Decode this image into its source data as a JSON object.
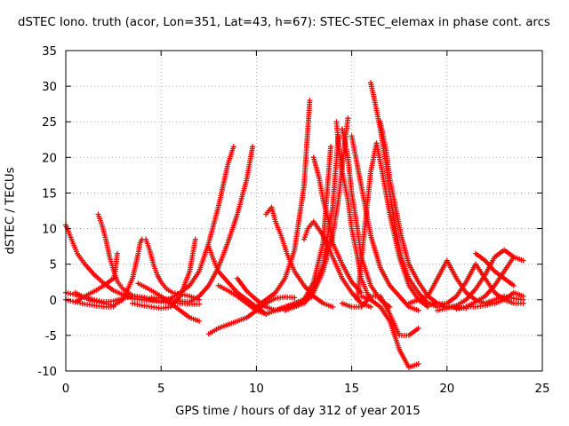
{
  "chart_data": {
    "type": "scatter",
    "title": "dSTEC Iono. truth (acor, Lon=351, Lat=43, h=67): STEC-STEC_elemax in phase cont. arcs",
    "xlabel": "GPS time / hours of day 312 of year 2015",
    "ylabel": "dSTEC  / TECUs",
    "xlim": [
      0,
      25
    ],
    "ylim": [
      -10,
      35
    ],
    "x_ticks": [
      0,
      5,
      10,
      15,
      20,
      25
    ],
    "y_ticks": [
      -10,
      -5,
      0,
      5,
      10,
      15,
      20,
      25,
      30,
      35
    ],
    "grid": true,
    "marker": "+",
    "color": "#ff0000",
    "series": [
      {
        "x": [
          0.0,
          0.3,
          0.6,
          1.0,
          1.5,
          2.0,
          2.5,
          3.0,
          3.5,
          4.0
        ],
        "y": [
          10.5,
          8.5,
          6.5,
          5.0,
          3.5,
          2.3,
          1.3,
          0.7,
          0.2,
          0.0
        ]
      },
      {
        "x": [
          0.0,
          0.5,
          1.0,
          1.5,
          2.0,
          2.5,
          3.0,
          3.5,
          4.0,
          4.5,
          5.0,
          5.5,
          6.0
        ],
        "y": [
          1.0,
          0.7,
          0.3,
          0.0,
          -0.3,
          -0.2,
          0.2,
          0.5,
          0.4,
          0.1,
          -0.2,
          -0.3,
          -0.2
        ]
      },
      {
        "x": [
          0.0,
          0.5,
          1.0,
          1.5,
          2.0,
          2.5
        ],
        "y": [
          0.0,
          -0.3,
          -0.6,
          -0.8,
          -1.0,
          -1.0
        ]
      },
      {
        "x": [
          1.7,
          1.9,
          2.1,
          2.3,
          2.5,
          2.7,
          3.0,
          3.5,
          4.0,
          4.5,
          5.0,
          5.5,
          6.0,
          6.5,
          7.0
        ],
        "y": [
          12.0,
          10.5,
          8.5,
          6.0,
          4.2,
          2.6,
          1.5,
          0.6,
          0.3,
          0.0,
          -0.3,
          -0.4,
          -0.5,
          -0.6,
          -0.6
        ]
      },
      {
        "x": [
          0.5,
          1.0,
          1.5,
          2.0,
          2.5,
          2.6,
          2.7
        ],
        "y": [
          -0.3,
          0.5,
          1.2,
          2.0,
          3.0,
          4.0,
          6.5
        ]
      },
      {
        "x": [
          0.5,
          1.0,
          1.5,
          2.0,
          2.5,
          3.0,
          3.5,
          3.8,
          3.9,
          4.0
        ],
        "y": [
          1.0,
          0.3,
          -0.2,
          -0.5,
          -0.8,
          0.0,
          3.0,
          6.5,
          8.0,
          8.5
        ]
      },
      {
        "x": [
          4.2,
          4.4,
          4.6,
          4.8,
          5.0,
          5.3,
          5.6,
          6.0,
          6.5,
          7.0
        ],
        "y": [
          8.5,
          7.0,
          5.0,
          3.5,
          2.5,
          1.5,
          1.0,
          0.8,
          0.5,
          0.0
        ]
      },
      {
        "x": [
          3.5,
          4.0,
          4.5,
          5.0,
          5.5,
          6.0,
          6.5,
          6.8
        ],
        "y": [
          -0.5,
          -0.8,
          -1.0,
          -1.2,
          -1.0,
          0.5,
          4.0,
          8.5
        ]
      },
      {
        "x": [
          3.8,
          4.5,
          5.0,
          5.5,
          6.0,
          6.5,
          7.0
        ],
        "y": [
          2.3,
          1.3,
          0.5,
          -0.5,
          -1.5,
          -2.5,
          -3.0
        ]
      },
      {
        "x": [
          4.0,
          5.0,
          5.5,
          6.0,
          6.5,
          7.0,
          7.5,
          8.0,
          8.5,
          8.8
        ],
        "y": [
          0.0,
          -0.2,
          0.2,
          1.0,
          2.0,
          4.0,
          8.0,
          13.0,
          19.0,
          21.5
        ]
      },
      {
        "x": [
          4.5,
          5.0,
          5.5,
          6.0,
          6.5,
          7.0,
          7.5,
          8.0,
          8.5,
          9.0,
          9.5,
          9.8
        ],
        "y": [
          0.3,
          0.2,
          0.0,
          -0.2,
          -0.3,
          0.5,
          2.0,
          4.5,
          8.0,
          12.0,
          17.0,
          21.5
        ]
      },
      {
        "x": [
          7.5,
          7.7,
          8.0,
          8.5,
          9.0,
          9.5,
          10.0,
          10.5
        ],
        "y": [
          7.5,
          6.0,
          4.0,
          2.5,
          1.0,
          0.0,
          -1.0,
          -2.0
        ]
      },
      {
        "x": [
          7.5,
          8.0,
          8.5,
          9.0,
          9.5,
          10.0,
          10.5,
          11.0,
          11.5,
          12.0
        ],
        "y": [
          -4.8,
          -4.0,
          -3.5,
          -3.0,
          -2.5,
          -1.5,
          -0.5,
          0.2,
          0.4,
          0.3
        ]
      },
      {
        "x": [
          8.0,
          8.5,
          9.0,
          9.5,
          10.0,
          10.5,
          11.0,
          11.5,
          12.0
        ],
        "y": [
          2.0,
          1.3,
          0.5,
          -0.5,
          -1.5,
          -2.0,
          -1.5,
          -1.0,
          -0.8
        ]
      },
      {
        "x": [
          9.0,
          9.5,
          10.0,
          10.5,
          11.0,
          11.5,
          12.0,
          12.5,
          13.0
        ],
        "y": [
          3.0,
          1.2,
          0.0,
          -1.0,
          -1.5,
          -1.2,
          -0.5,
          0.0,
          0.5
        ]
      },
      {
        "x": [
          10.0,
          10.5,
          11.0,
          11.5,
          12.0,
          12.5,
          12.8
        ],
        "y": [
          -1.0,
          0.0,
          1.0,
          3.0,
          7.0,
          16.0,
          28.0
        ]
      },
      {
        "x": [
          10.5,
          10.8,
          11.0,
          11.3,
          11.6,
          12.0,
          12.5,
          13.0,
          13.5,
          14.0
        ],
        "y": [
          12.0,
          13.0,
          11.0,
          9.0,
          6.5,
          4.0,
          2.0,
          0.5,
          -0.5,
          -1.0
        ]
      },
      {
        "x": [
          11.0,
          11.5,
          12.0,
          12.5,
          13.0,
          13.5,
          13.9
        ],
        "y": [
          -1.5,
          -1.0,
          -0.5,
          0.0,
          2.5,
          8.0,
          21.5
        ]
      },
      {
        "x": [
          11.5,
          12.0,
          12.5,
          13.0,
          13.5,
          14.0,
          14.3
        ],
        "y": [
          -1.5,
          -1.0,
          0.0,
          1.5,
          5.0,
          13.0,
          23.0
        ]
      },
      {
        "x": [
          12.0,
          12.5,
          13.0,
          13.5,
          14.0,
          14.3,
          14.6,
          14.8
        ],
        "y": [
          -1.0,
          -0.5,
          1.0,
          4.0,
          9.0,
          14.0,
          21.0,
          25.5
        ]
      },
      {
        "x": [
          12.5,
          12.7,
          13.0,
          13.5,
          14.0,
          14.5,
          15.0,
          15.5,
          16.0
        ],
        "y": [
          8.5,
          10.0,
          11.0,
          9.0,
          6.0,
          3.0,
          1.0,
          -0.5,
          -1.0
        ]
      },
      {
        "x": [
          13.0,
          13.3,
          13.5,
          13.8,
          14.0,
          14.5,
          15.0,
          15.5
        ],
        "y": [
          20.0,
          17.0,
          14.0,
          11.0,
          8.0,
          5.0,
          2.5,
          1.0
        ]
      },
      {
        "x": [
          14.2,
          14.3,
          14.5,
          14.8,
          15.0,
          15.3,
          15.5,
          15.8,
          16.0
        ],
        "y": [
          25.0,
          22.0,
          18.0,
          14.0,
          10.0,
          6.0,
          3.0,
          1.0,
          0.0
        ]
      },
      {
        "x": [
          14.5,
          14.8,
          15.0,
          15.3,
          15.5,
          16.0,
          16.5,
          17.0
        ],
        "y": [
          24.0,
          20.0,
          15.0,
          10.0,
          6.0,
          2.0,
          0.0,
          -1.0
        ]
      },
      {
        "x": [
          15.0,
          15.5,
          16.0,
          16.5,
          17.0,
          17.5,
          18.0,
          18.5
        ],
        "y": [
          23.0,
          16.0,
          9.0,
          4.5,
          2.0,
          0.5,
          -1.0,
          -1.5
        ]
      },
      {
        "x": [
          15.3,
          15.6,
          15.8,
          16.0,
          16.3,
          16.6,
          17.0,
          17.5,
          18.0,
          18.5,
          19.0
        ],
        "y": [
          0.0,
          8.0,
          13.0,
          18.0,
          22.0,
          18.0,
          12.0,
          6.0,
          2.0,
          0.0,
          -1.0
        ]
      },
      {
        "x": [
          16.0,
          16.2,
          16.5,
          16.8,
          17.0,
          17.3,
          17.6,
          18.0,
          18.5,
          19.0,
          19.5,
          20.0
        ],
        "y": [
          30.5,
          28.0,
          24.0,
          19.0,
          15.0,
          10.0,
          6.0,
          3.0,
          1.0,
          -0.5,
          -1.0,
          -1.0
        ]
      },
      {
        "x": [
          16.5,
          16.8,
          17.0,
          17.3,
          17.6,
          18.0,
          18.5,
          19.0,
          19.5,
          20.0,
          21.0
        ],
        "y": [
          25.0,
          21.0,
          17.0,
          13.0,
          9.0,
          5.0,
          2.5,
          0.5,
          -0.5,
          -1.0,
          -1.2
        ]
      },
      {
        "x": [
          14.5,
          15.0,
          15.5,
          16.0,
          16.5,
          17.0,
          17.5,
          18.0,
          18.5
        ],
        "y": [
          -0.5,
          -1.0,
          -1.0,
          0.5,
          0.5,
          -2.0,
          -5.0,
          -5.0,
          -4.0
        ]
      },
      {
        "x": [
          15.5,
          16.0,
          16.5,
          17.0,
          17.5,
          18.0,
          18.5
        ],
        "y": [
          0.5,
          0.0,
          -1.0,
          -3.0,
          -7.0,
          -9.5,
          -9.0
        ]
      },
      {
        "x": [
          18.0,
          18.5,
          19.0,
          19.5,
          20.0,
          20.5,
          21.0,
          21.5,
          22.0,
          22.5,
          23.0,
          23.5,
          24.0
        ],
        "y": [
          -0.5,
          0.0,
          0.5,
          3.0,
          5.5,
          3.0,
          1.0,
          0.0,
          -0.5,
          0.0,
          0.5,
          0.2,
          0.0
        ]
      },
      {
        "x": [
          19.0,
          19.5,
          20.0,
          20.5,
          21.0,
          21.5,
          22.0,
          22.5,
          23.0,
          23.5,
          24.0
        ],
        "y": [
          -0.5,
          -0.6,
          -0.5,
          0.5,
          2.5,
          5.0,
          3.0,
          1.0,
          0.0,
          -0.5,
          -0.5
        ]
      },
      {
        "x": [
          19.5,
          20.0,
          20.5,
          21.0,
          21.5,
          22.0,
          22.5,
          23.0,
          23.5
        ],
        "y": [
          -1.5,
          -1.2,
          -0.8,
          0.0,
          1.5,
          3.5,
          6.0,
          7.0,
          6.0
        ]
      },
      {
        "x": [
          20.5,
          21.0,
          21.5,
          22.0,
          22.5,
          23.0,
          23.5,
          24.0
        ],
        "y": [
          -1.3,
          -1.0,
          -0.3,
          0.5,
          2.0,
          4.0,
          6.0,
          5.5
        ]
      },
      {
        "x": [
          21.0,
          21.5,
          22.0,
          22.5,
          23.0,
          23.5,
          24.0
        ],
        "y": [
          -1.0,
          -1.0,
          -0.8,
          -0.5,
          0.0,
          1.0,
          0.5
        ]
      },
      {
        "x": [
          21.5,
          22.0,
          22.5,
          23.0,
          23.5
        ],
        "y": [
          6.5,
          5.5,
          4.0,
          3.0,
          2.0
        ]
      }
    ]
  }
}
